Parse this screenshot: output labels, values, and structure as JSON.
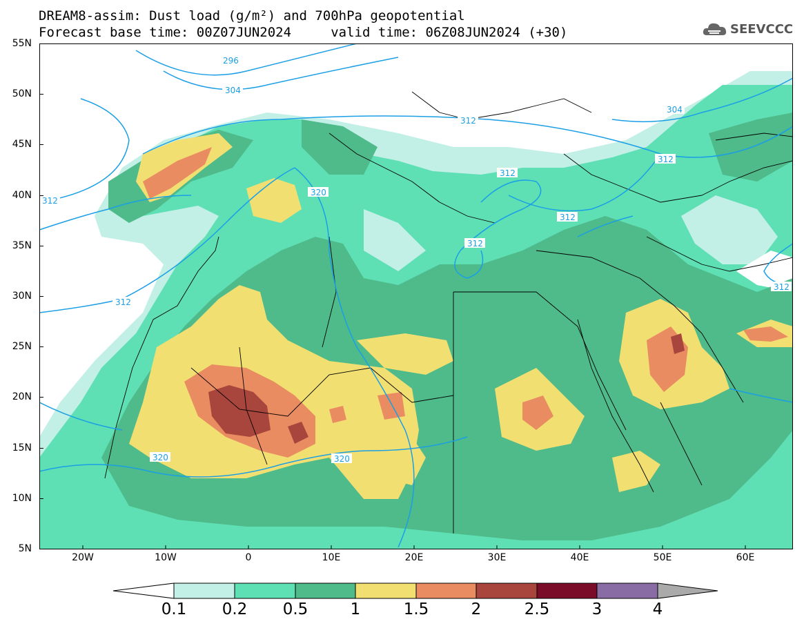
{
  "title_line1": "DREAM8-assim: Dust load (g/m²) and 700hPa geopotential",
  "title_line2": "Forecast base time: 00Z07JUN2024     valid time: 06Z08JUN2024 (+30)",
  "logo_text": "SEEVCCC",
  "lat_labels": [
    "55N",
    "50N",
    "45N",
    "40N",
    "35N",
    "30N",
    "25N",
    "20N",
    "15N",
    "10N",
    "5N"
  ],
  "lon_labels": [
    "20W",
    "10W",
    "0",
    "10E",
    "20E",
    "30E",
    "40E",
    "50E",
    "60E"
  ],
  "contour_labels": [
    "296",
    "304",
    "304",
    "312",
    "312",
    "312",
    "312",
    "312",
    "312",
    "312",
    "320",
    "320",
    "320",
    "312"
  ],
  "colorbar": {
    "values": [
      "0.1",
      "0.2",
      "0.5",
      "1",
      "1.5",
      "2",
      "2.5",
      "3",
      "4"
    ],
    "colors": [
      "#ffffff",
      "#c2efe6",
      "#5fe0b4",
      "#4fba8a",
      "#f2df72",
      "#e98c62",
      "#a8453c",
      "#7a0c2a",
      "#8a6ca5",
      "#aaaaaa"
    ]
  },
  "colors": {
    "d01": "#c2efe6",
    "d02": "#5fe0b4",
    "d05": "#4fba8a",
    "d1": "#f2df72",
    "d15": "#e98c62",
    "d2": "#a8453c",
    "contour": "#1a9fe6"
  }
}
